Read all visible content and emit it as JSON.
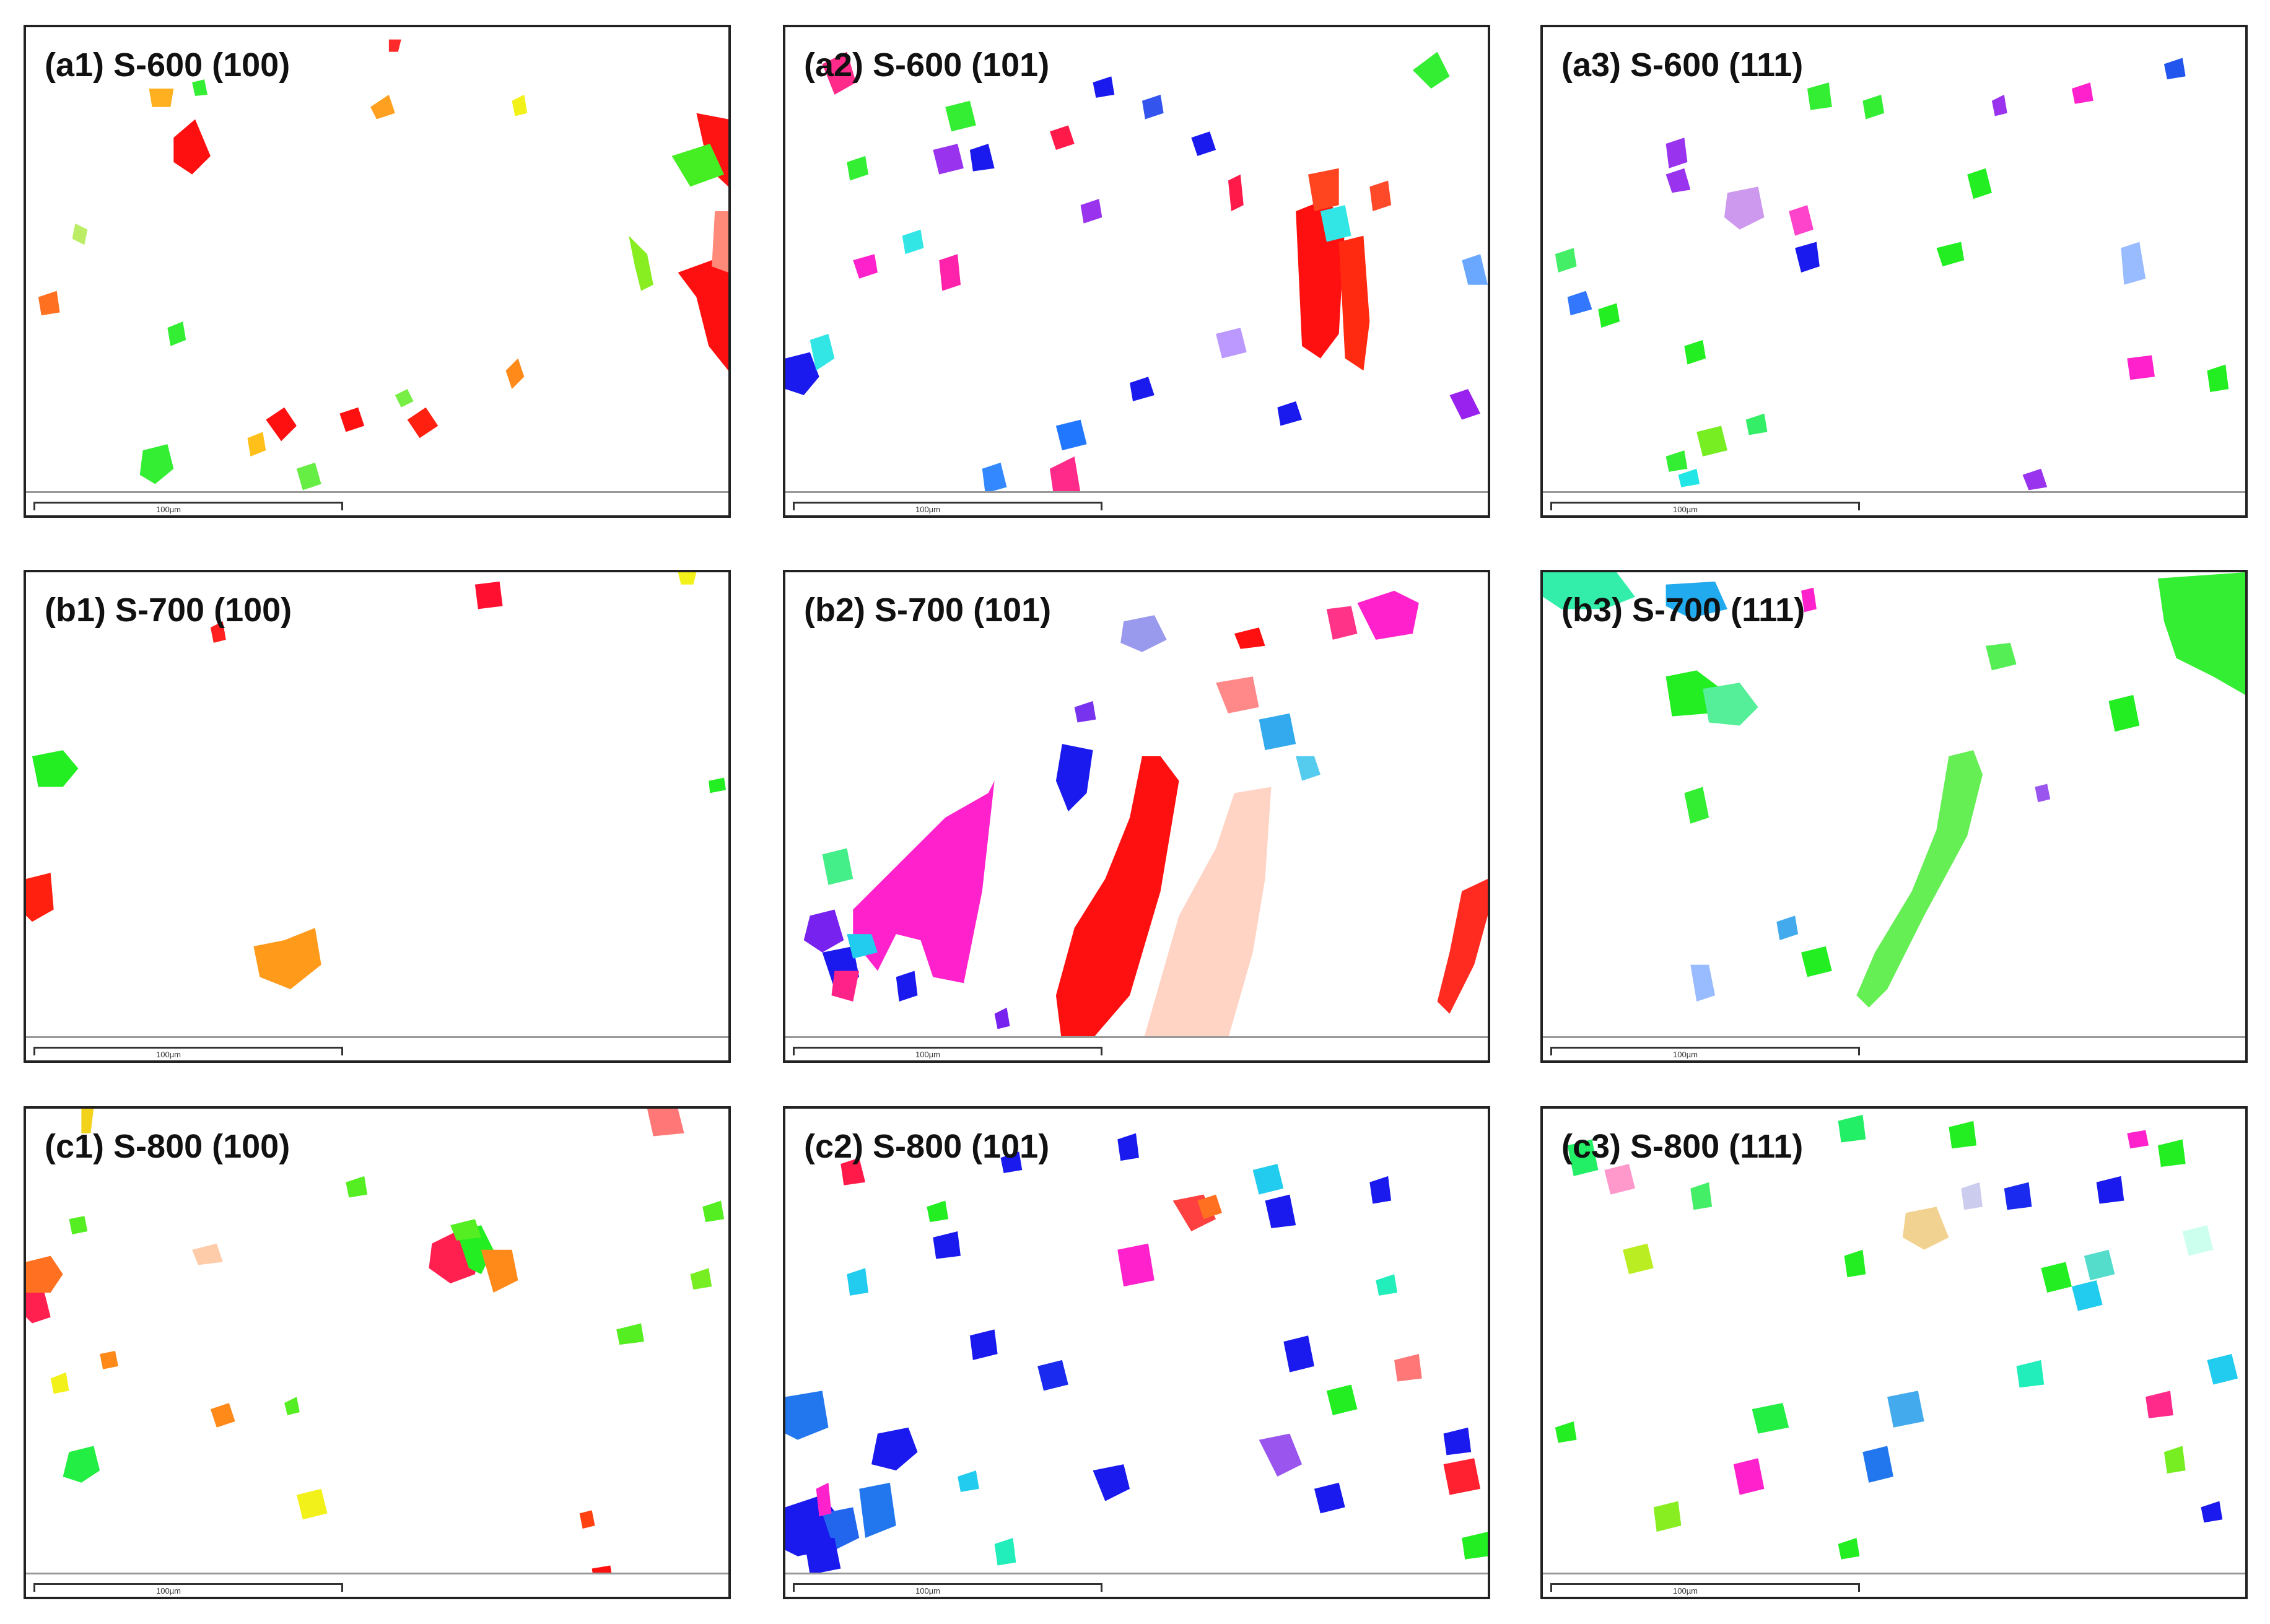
{
  "panels": [
    {
      "label": "(a1) S-600 (100)",
      "scale": "100µm"
    },
    {
      "label": "(a2) S-600 (101)",
      "scale": "100µm"
    },
    {
      "label": "(a3) S-600 (111)",
      "scale": "100µm"
    },
    {
      "label": "(b1) S-700 (100)",
      "scale": "100µm"
    },
    {
      "label": "(b2) S-700 (101)",
      "scale": "100µm"
    },
    {
      "label": "(b3) S-700 (111)",
      "scale": "100µm"
    },
    {
      "label": "(c1) S-800 (100)",
      "scale": "100µm"
    },
    {
      "label": "(c2) S-800 (101)",
      "scale": "100µm"
    },
    {
      "label": "(c3) S-800 (111)",
      "scale": "100µm"
    }
  ],
  "colors": {
    "red": "#ff1010",
    "green": "#22ee22",
    "blue": "#1a1aee",
    "magenta": "#ff22cc",
    "orange": "#ff9a1a",
    "yellow": "#f2f21a",
    "cyan": "#22e6e6",
    "lightgreen": "#66ee66",
    "violet": "#9933ee",
    "lightblue": "#6aa8ff",
    "salmon": "#ff7777"
  }
}
